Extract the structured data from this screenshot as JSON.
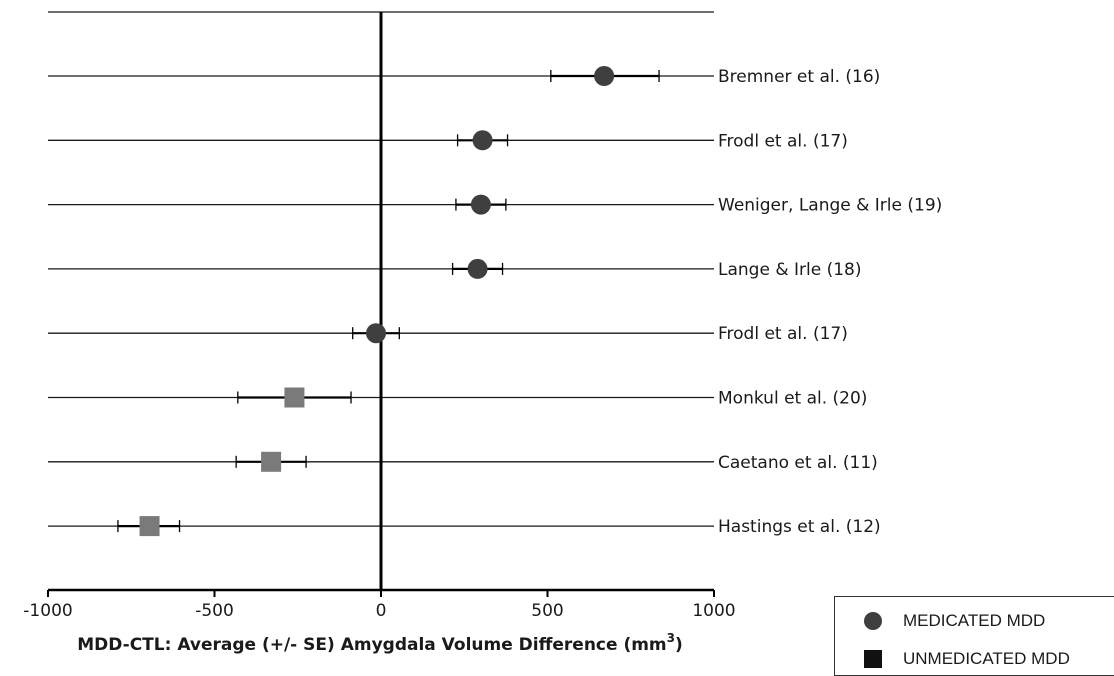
{
  "chart_data": {
    "type": "forest",
    "title": "",
    "xlabel_main": "MDD-CTL: Average (+/- SE) Amygdala Volume Difference (mm",
    "xlabel_sup": "3",
    "xlabel_end": ")",
    "xlim": [
      -1000,
      1000
    ],
    "xticks": [
      "-1000",
      "-500",
      "0",
      "500",
      "1000"
    ],
    "grid": "horizontal lines per study",
    "studies": [
      {
        "label": "Bremner et al. (16)",
        "group": "medicated",
        "mean": 670,
        "lower": 510,
        "upper": 835
      },
      {
        "label": "Frodl et al. (17)",
        "group": "medicated",
        "mean": 305,
        "lower": 230,
        "upper": 380
      },
      {
        "label": "Weniger, Lange & Irle (19)",
        "group": "medicated",
        "mean": 300,
        "lower": 225,
        "upper": 375
      },
      {
        "label": "Lange & Irle (18)",
        "group": "medicated",
        "mean": 290,
        "lower": 215,
        "upper": 365
      },
      {
        "label": "Frodl et al. (17)",
        "group": "medicated",
        "mean": -15,
        "lower": -85,
        "upper": 55
      },
      {
        "label": "Monkul et al. (20)",
        "group": "unmedicated",
        "mean": -260,
        "lower": -430,
        "upper": -90
      },
      {
        "label": "Caetano et al. (11)",
        "group": "unmedicated",
        "mean": -330,
        "lower": -435,
        "upper": -225
      },
      {
        "label": "Hastings et al. (12)",
        "group": "unmedicated",
        "mean": -695,
        "lower": -790,
        "upper": -605
      }
    ],
    "legend": {
      "placement": "bottom-right",
      "entries": [
        {
          "key": "medicated",
          "label": "MEDICATED MDD",
          "marker": "circle"
        },
        {
          "key": "unmedicated",
          "label": "UNMEDICATED MDD",
          "marker": "square"
        }
      ]
    },
    "colors": {
      "medicated": "#3f3f3f",
      "unmedicated_chart": "#7a7a7a",
      "unmedicated_legend": "#111111",
      "lines": "#1a1a1a"
    }
  }
}
